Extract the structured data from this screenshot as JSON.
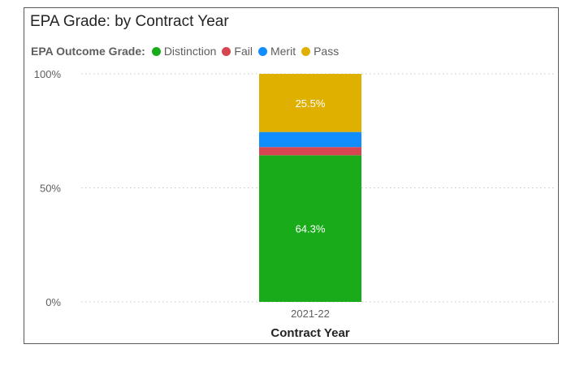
{
  "chart_data": {
    "type": "bar",
    "stacked": true,
    "normalized": true,
    "title": "EPA Grade: by Contract Year",
    "legend_title": "EPA Outcome Grade:",
    "legend_position": "top-left",
    "categories": [
      "2021-22"
    ],
    "xlabel": "Contract Year",
    "ylabel": "",
    "ylim": [
      0,
      100
    ],
    "yticks": [
      0,
      50,
      100
    ],
    "ytick_labels": [
      "0%",
      "50%",
      "100%"
    ],
    "grid": true,
    "series": [
      {
        "name": "Distinction",
        "color": "#1aab1a",
        "values": [
          64.3
        ],
        "data_label": "64.3%"
      },
      {
        "name": "Fail",
        "color": "#d64550",
        "values": [
          3.6
        ],
        "data_label": ""
      },
      {
        "name": "Merit",
        "color": "#118dff",
        "values": [
          6.6
        ],
        "data_label": ""
      },
      {
        "name": "Pass",
        "color": "#dfb000",
        "values": [
          25.5
        ],
        "data_label": "25.5%"
      }
    ]
  }
}
